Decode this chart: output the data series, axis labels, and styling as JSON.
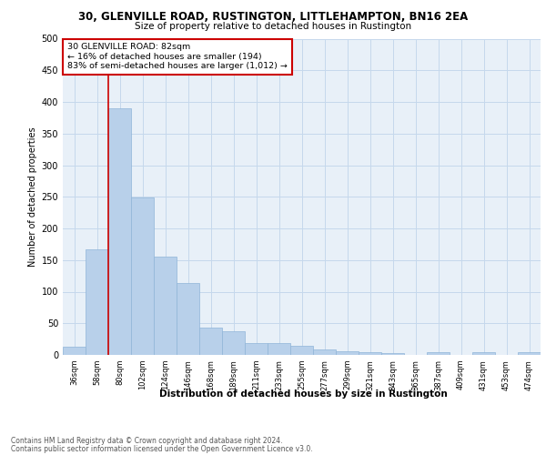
{
  "title": "30, GLENVILLE ROAD, RUSTINGTON, LITTLEHAMPTON, BN16 2EA",
  "subtitle": "Size of property relative to detached houses in Rustington",
  "xlabel": "Distribution of detached houses by size in Rustington",
  "ylabel": "Number of detached properties",
  "footnote1": "Contains HM Land Registry data © Crown copyright and database right 2024.",
  "footnote2": "Contains public sector information licensed under the Open Government Licence v3.0.",
  "bar_categories": [
    "36sqm",
    "58sqm",
    "80sqm",
    "102sqm",
    "124sqm",
    "146sqm",
    "168sqm",
    "189sqm",
    "211sqm",
    "233sqm",
    "255sqm",
    "277sqm",
    "299sqm",
    "321sqm",
    "343sqm",
    "365sqm",
    "387sqm",
    "409sqm",
    "431sqm",
    "453sqm",
    "474sqm"
  ],
  "bar_values": [
    13,
    167,
    390,
    249,
    156,
    114,
    43,
    37,
    19,
    18,
    15,
    9,
    6,
    4,
    3,
    0,
    4,
    0,
    4,
    0,
    5
  ],
  "bar_color": "#b8d0ea",
  "bar_edge_color": "#8fb4d8",
  "grid_color": "#c5d8ec",
  "vline_x_index": 2,
  "vline_color": "#cc0000",
  "annotation_text": "30 GLENVILLE ROAD: 82sqm\n← 16% of detached houses are smaller (194)\n83% of semi-detached houses are larger (1,012) →",
  "annotation_box_color": "#cc0000",
  "annotation_bg": "#ffffff",
  "ylim": [
    0,
    500
  ],
  "yticks": [
    0,
    50,
    100,
    150,
    200,
    250,
    300,
    350,
    400,
    450,
    500
  ],
  "plot_bg_color": "#e8f0f8"
}
